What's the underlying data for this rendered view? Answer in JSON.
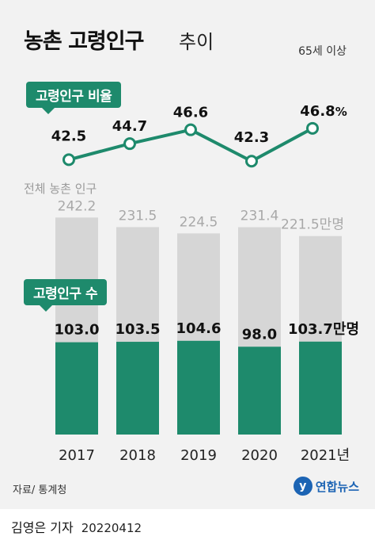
{
  "header": {
    "title": "농촌 고령인구",
    "title_suffix": "추이",
    "note": "65세 이상"
  },
  "labels": {
    "ratio_tag": "고령인구 비율",
    "total_label": "전체 농촌 인구",
    "elderly_tag": "고령인구 수",
    "unit_manmyeong": "만명",
    "unit_percent": "%"
  },
  "footer": {
    "source": "자료/ 통계청",
    "logo": "연합뉴스",
    "byline": "김영은 기자",
    "date": "20220412"
  },
  "colors": {
    "accent_green": "#1e8a6c",
    "total_bar": "#d6d6d6",
    "card_bg": "#f2f2f2"
  },
  "chart_data": [
    {
      "type": "line",
      "name": "고령인구 비율",
      "x": [
        "2017",
        "2018",
        "2019",
        "2020",
        "2021"
      ],
      "values": [
        42.5,
        44.7,
        46.6,
        42.3,
        46.8
      ],
      "value_labels": [
        "42.5",
        "44.7",
        "46.6",
        "42.3",
        "46.8%"
      ],
      "unit": "%"
    },
    {
      "type": "bar",
      "categories": [
        "2017",
        "2018",
        "2019",
        "2020",
        "2021년"
      ],
      "series": [
        {
          "name": "전체 농촌 인구",
          "values": [
            242.2,
            231.5,
            224.5,
            231.4,
            221.5
          ],
          "value_labels": [
            "242.2",
            "231.5",
            "224.5",
            "231.4",
            "221.5만명"
          ]
        },
        {
          "name": "고령인구 수",
          "values": [
            103.0,
            103.5,
            104.6,
            98.0,
            103.7
          ],
          "value_labels": [
            "103.0",
            "103.5",
            "104.6",
            "98.0",
            "103.7만명"
          ]
        }
      ],
      "unit": "만명"
    }
  ]
}
